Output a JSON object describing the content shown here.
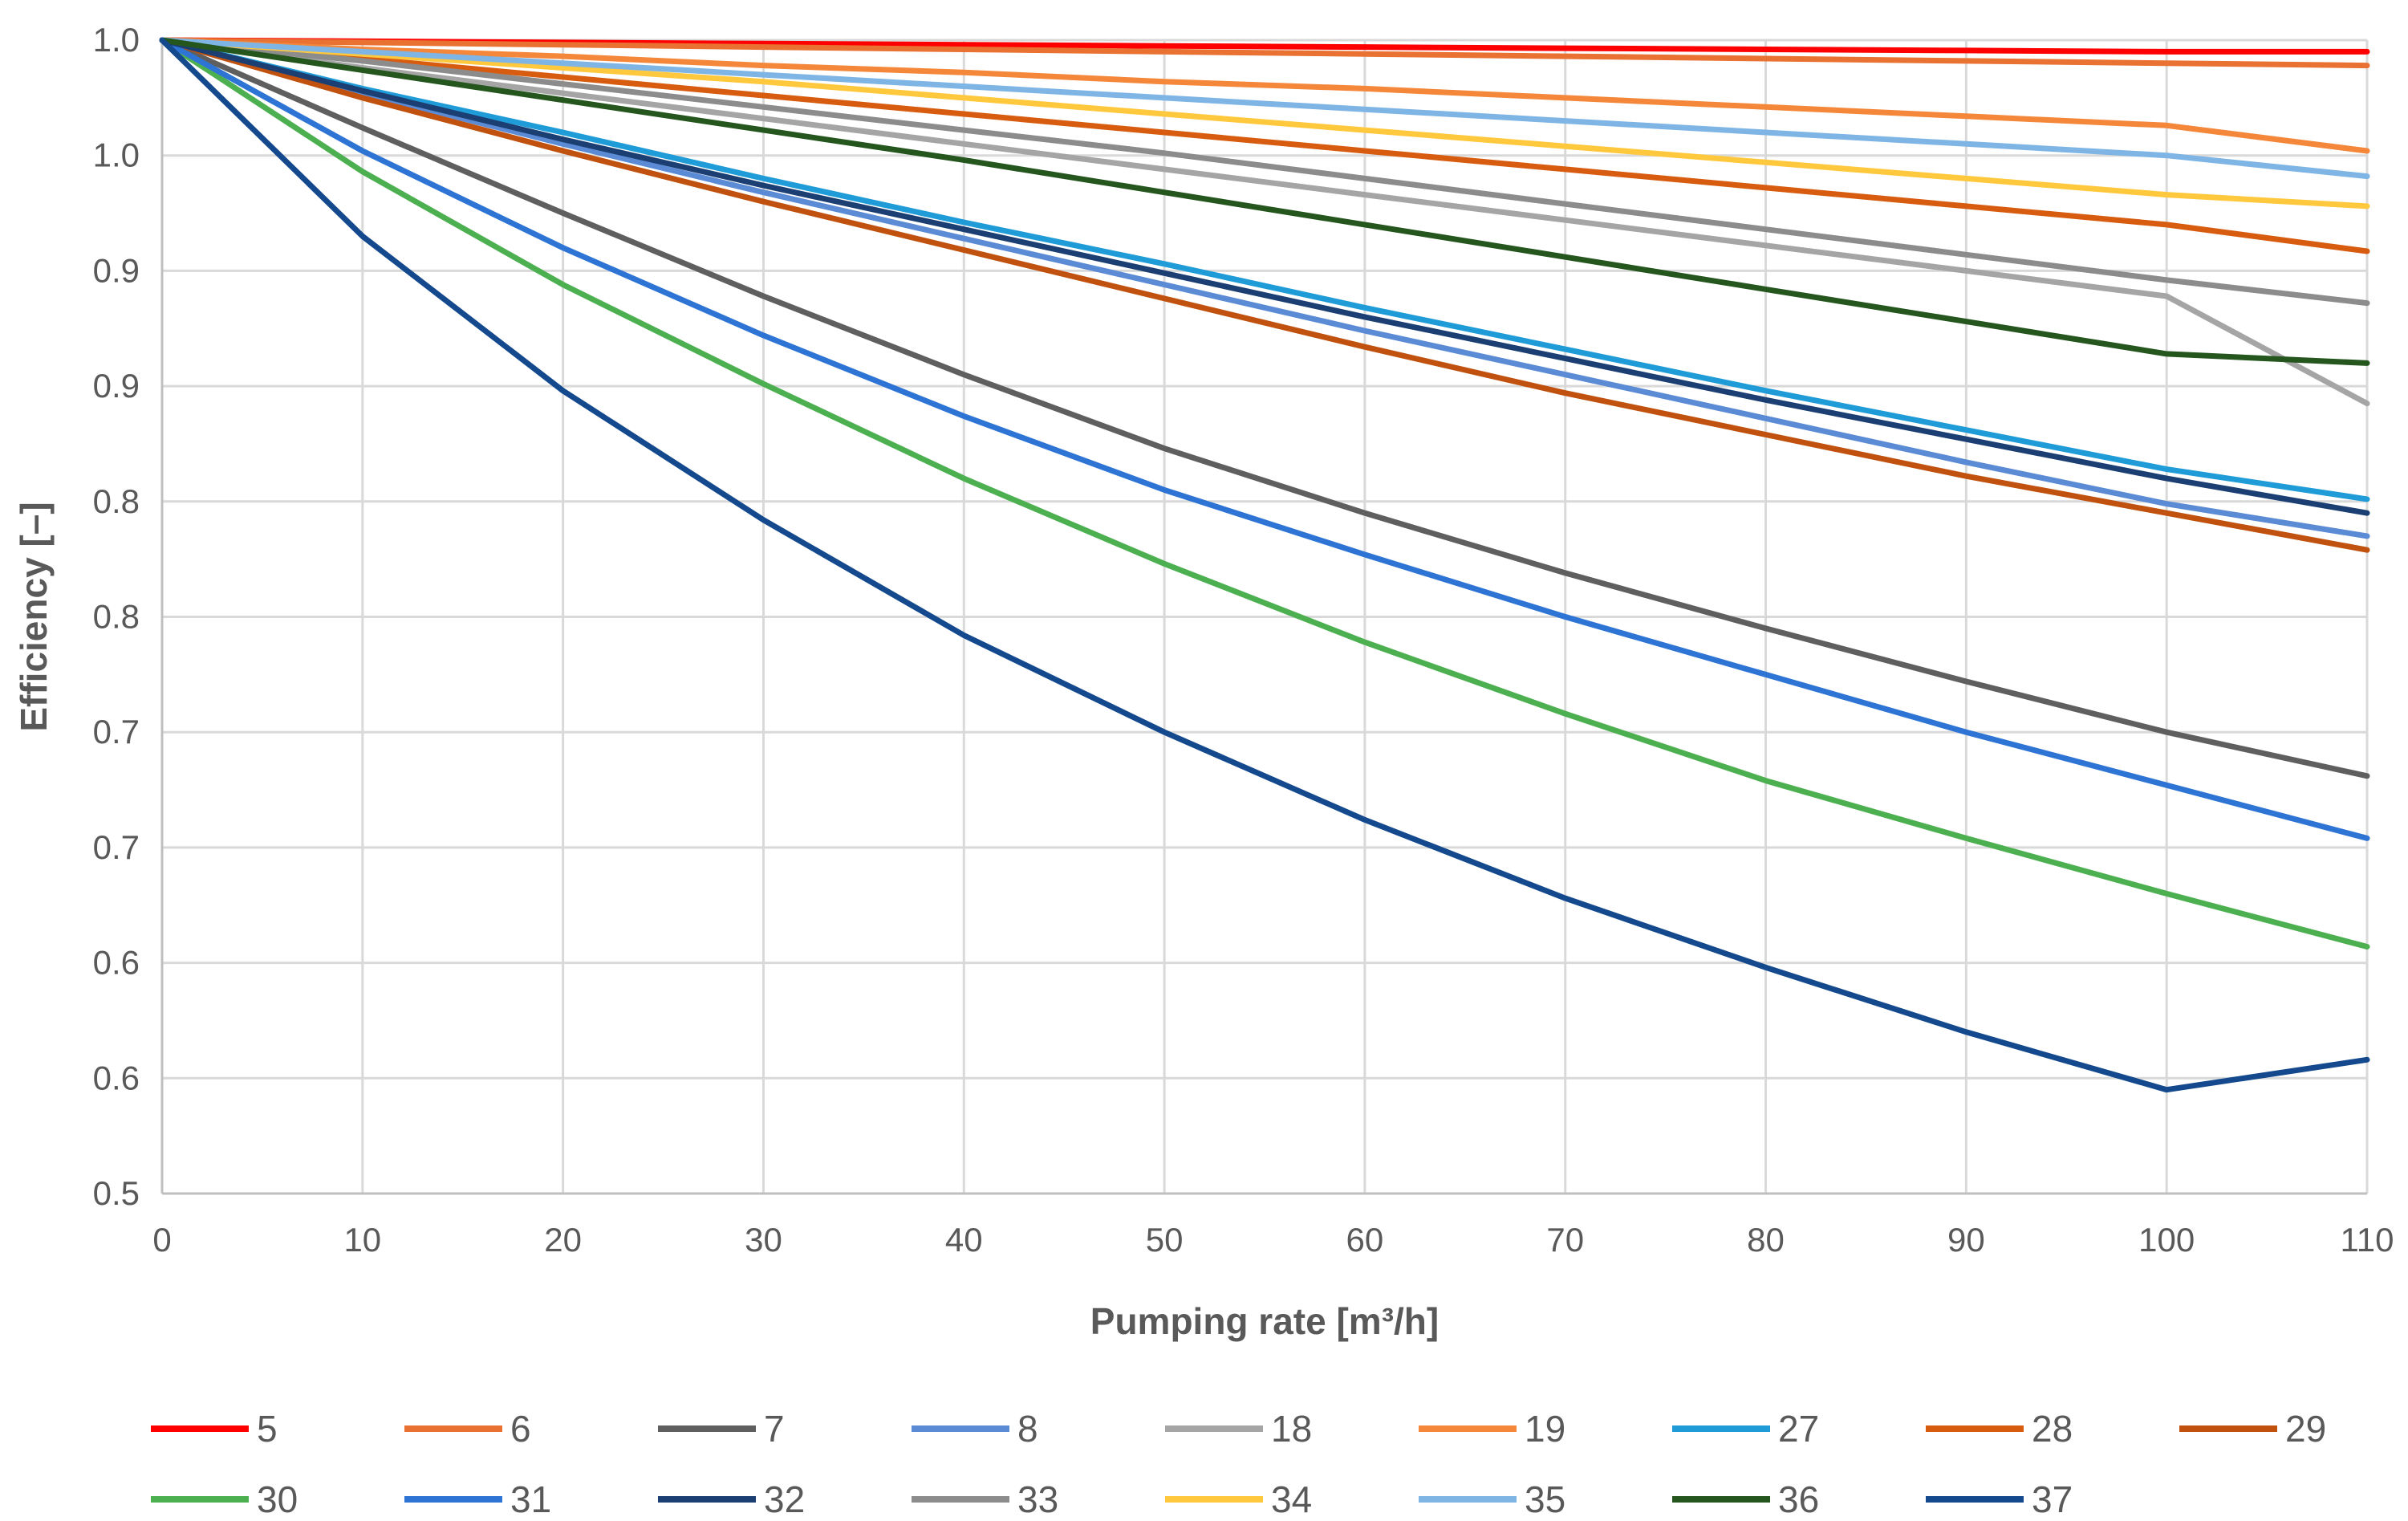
{
  "chart_data": {
    "type": "line",
    "title": "",
    "xlabel": "Pumping rate [m³/h]",
    "ylabel": "Efficiency  [–]",
    "xlim": [
      0,
      110
    ],
    "ylim": [
      0.5,
      1.0
    ],
    "grid": true,
    "legend_position": "bottom",
    "x_ticks": [
      "0",
      "10",
      "20",
      "30",
      "40",
      "50",
      "60",
      "70",
      "80",
      "90",
      "100",
      "110"
    ],
    "y_ticks": [
      "0.5",
      "0.6",
      "0.6",
      "0.7",
      "0.7",
      "0.8",
      "0.8",
      "0.9",
      "0.9",
      "1.0",
      "1.0"
    ],
    "x": [
      0,
      10,
      20,
      30,
      40,
      50,
      60,
      70,
      80,
      90,
      100,
      110
    ],
    "series": [
      {
        "name": "5",
        "color": "#FF0000",
        "values": [
          1.0,
          0.9995,
          0.999,
          0.9985,
          0.998,
          0.9975,
          0.997,
          0.9965,
          0.996,
          0.9955,
          0.995,
          0.995
        ]
      },
      {
        "name": "6",
        "color": "#E97132",
        "values": [
          1.0,
          0.999,
          0.998,
          0.997,
          0.996,
          0.995,
          0.994,
          0.993,
          0.992,
          0.991,
          0.99,
          0.989
        ]
      },
      {
        "name": "7",
        "color": "#5F5F5F",
        "values": [
          1.0,
          0.962,
          0.925,
          0.889,
          0.855,
          0.823,
          0.795,
          0.769,
          0.745,
          0.722,
          0.7,
          0.681
        ]
      },
      {
        "name": "8",
        "color": "#5B8BD5",
        "values": [
          1.0,
          0.977,
          0.955,
          0.934,
          0.914,
          0.894,
          0.874,
          0.855,
          0.836,
          0.817,
          0.799,
          0.785
        ]
      },
      {
        "name": "18",
        "color": "#A5A5A5",
        "values": [
          1.0,
          0.988,
          0.977,
          0.966,
          0.955,
          0.944,
          0.933,
          0.922,
          0.911,
          0.9,
          0.889,
          0.8425
        ]
      },
      {
        "name": "19",
        "color": "#F4873A",
        "values": [
          1.0,
          0.996,
          0.993,
          0.989,
          0.986,
          0.982,
          0.979,
          0.975,
          0.971,
          0.967,
          0.963,
          0.952
        ]
      },
      {
        "name": "27",
        "color": "#1F9CD8",
        "values": [
          1.0,
          0.979,
          0.96,
          0.94,
          0.921,
          0.903,
          0.884,
          0.866,
          0.848,
          0.831,
          0.814,
          0.801
        ]
      },
      {
        "name": "28",
        "color": "#D85C10",
        "values": [
          1.0,
          0.992,
          0.984,
          0.976,
          0.968,
          0.96,
          0.952,
          0.944,
          0.936,
          0.928,
          0.92,
          0.9085
        ]
      },
      {
        "name": "29",
        "color": "#C0510E",
        "values": [
          1.0,
          0.975,
          0.952,
          0.93,
          0.909,
          0.888,
          0.867,
          0.847,
          0.829,
          0.811,
          0.795,
          0.779
        ]
      },
      {
        "name": "30",
        "color": "#4CB050",
        "values": [
          1.0,
          0.943,
          0.894,
          0.851,
          0.81,
          0.773,
          0.739,
          0.708,
          0.679,
          0.654,
          0.63,
          0.607
        ]
      },
      {
        "name": "31",
        "color": "#2E74D4",
        "values": [
          1.0,
          0.952,
          0.91,
          0.872,
          0.837,
          0.805,
          0.777,
          0.75,
          0.725,
          0.7,
          0.677,
          0.654
        ]
      },
      {
        "name": "32",
        "color": "#1B3F73",
        "values": [
          1.0,
          0.978,
          0.957,
          0.937,
          0.918,
          0.899,
          0.88,
          0.862,
          0.844,
          0.827,
          0.81,
          0.795
        ]
      },
      {
        "name": "33",
        "color": "#8C8C8C",
        "values": [
          1.0,
          0.991,
          0.981,
          0.971,
          0.961,
          0.951,
          0.94,
          0.929,
          0.918,
          0.907,
          0.896,
          0.886
        ]
      },
      {
        "name": "34",
        "color": "#FFC83D",
        "values": [
          1.0,
          0.994,
          0.988,
          0.982,
          0.975,
          0.968,
          0.961,
          0.954,
          0.947,
          0.94,
          0.933,
          0.928
        ]
      },
      {
        "name": "35",
        "color": "#7FB5E5",
        "values": [
          1.0,
          0.995,
          0.99,
          0.985,
          0.98,
          0.975,
          0.97,
          0.965,
          0.96,
          0.955,
          0.95,
          0.941
        ]
      },
      {
        "name": "36",
        "color": "#24561E",
        "values": [
          1.0,
          0.987,
          0.974,
          0.961,
          0.948,
          0.934,
          0.92,
          0.906,
          0.892,
          0.878,
          0.864,
          0.86
        ]
      },
      {
        "name": "37",
        "color": "#14498E",
        "values": [
          1.0,
          0.915,
          0.848,
          0.792,
          0.742,
          0.7,
          0.662,
          0.628,
          0.598,
          0.57,
          0.545,
          0.558
        ]
      }
    ]
  }
}
